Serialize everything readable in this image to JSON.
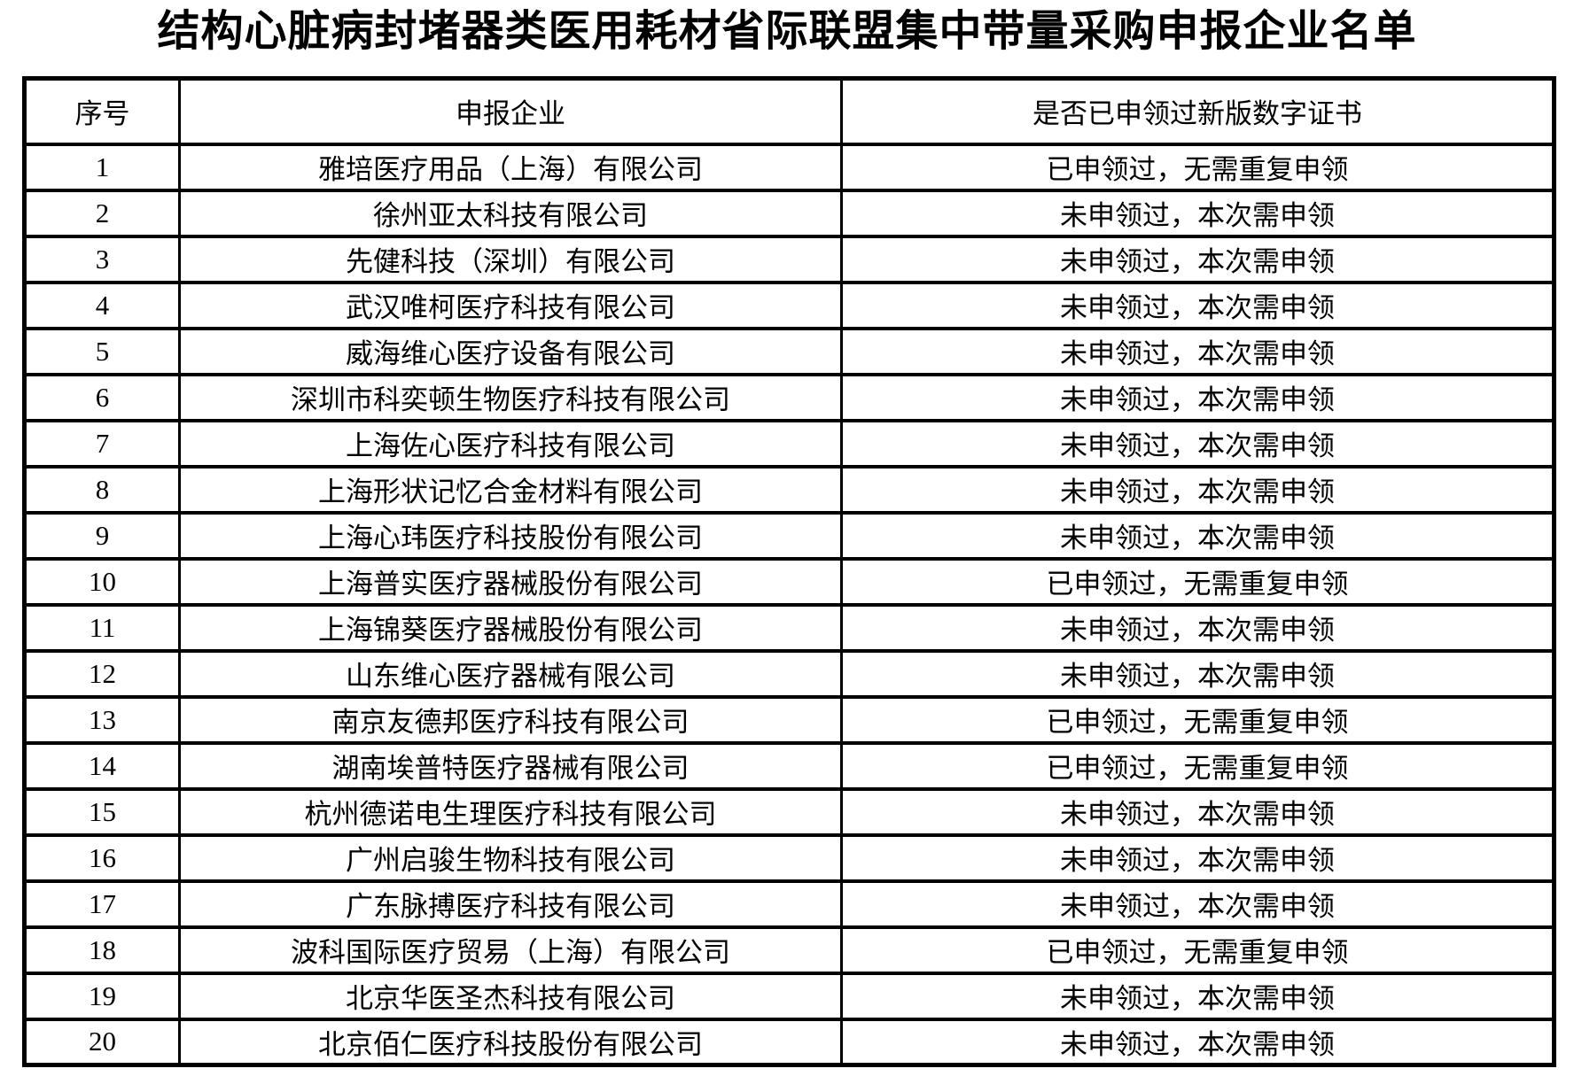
{
  "page": {
    "title": "结构心脏病封堵器类医用耗材省际联盟集中带量采购申报企业名单"
  },
  "table": {
    "headers": [
      "序号",
      "申报企业",
      "是否已申领过新版数字证书"
    ],
    "rows": [
      {
        "no": "1",
        "company": "雅培医疗用品（上海）有限公司",
        "status": "已申领过，无需重复申领"
      },
      {
        "no": "2",
        "company": "徐州亚太科技有限公司",
        "status": "未申领过，本次需申领"
      },
      {
        "no": "3",
        "company": "先健科技（深圳）有限公司",
        "status": "未申领过，本次需申领"
      },
      {
        "no": "4",
        "company": "武汉唯柯医疗科技有限公司",
        "status": "未申领过，本次需申领"
      },
      {
        "no": "5",
        "company": "威海维心医疗设备有限公司",
        "status": "未申领过，本次需申领"
      },
      {
        "no": "6",
        "company": "深圳市科奕顿生物医疗科技有限公司",
        "status": "未申领过，本次需申领"
      },
      {
        "no": "7",
        "company": "上海佐心医疗科技有限公司",
        "status": "未申领过，本次需申领"
      },
      {
        "no": "8",
        "company": "上海形状记忆合金材料有限公司",
        "status": "未申领过，本次需申领"
      },
      {
        "no": "9",
        "company": "上海心玮医疗科技股份有限公司",
        "status": "未申领过，本次需申领"
      },
      {
        "no": "10",
        "company": "上海普实医疗器械股份有限公司",
        "status": "已申领过，无需重复申领"
      },
      {
        "no": "11",
        "company": "上海锦葵医疗器械股份有限公司",
        "status": "未申领过，本次需申领"
      },
      {
        "no": "12",
        "company": "山东维心医疗器械有限公司",
        "status": "未申领过，本次需申领"
      },
      {
        "no": "13",
        "company": "南京友德邦医疗科技有限公司",
        "status": "已申领过，无需重复申领"
      },
      {
        "no": "14",
        "company": "湖南埃普特医疗器械有限公司",
        "status": "已申领过，无需重复申领"
      },
      {
        "no": "15",
        "company": "杭州德诺电生理医疗科技有限公司",
        "status": "未申领过，本次需申领"
      },
      {
        "no": "16",
        "company": "广州启骏生物科技有限公司",
        "status": "未申领过，本次需申领"
      },
      {
        "no": "17",
        "company": "广东脉搏医疗科技有限公司",
        "status": "未申领过，本次需申领"
      },
      {
        "no": "18",
        "company": "波科国际医疗贸易（上海）有限公司",
        "status": "已申领过，无需重复申领"
      },
      {
        "no": "19",
        "company": "北京华医圣杰科技有限公司",
        "status": "未申领过，本次需申领"
      },
      {
        "no": "20",
        "company": "北京佰仁医疗科技股份有限公司",
        "status": "未申领过，本次需申领"
      }
    ]
  }
}
